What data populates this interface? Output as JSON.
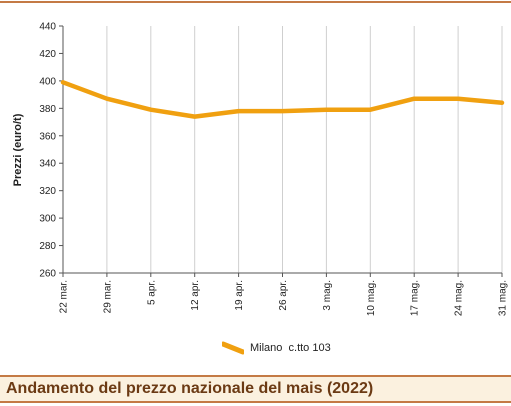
{
  "chart_data": {
    "type": "line",
    "title": "Andamento del prezzo nazionale del mais (2022)",
    "ylabel": "Prezzi (euro/t)",
    "xlabel": "",
    "categories": [
      "22 mar.",
      "29 mar.",
      "5 apr.",
      "12 apr.",
      "19 apr.",
      "26 apr.",
      "3 mag.",
      "10 mag.",
      "17 mag.",
      "24 mag.",
      "31 mag."
    ],
    "yticks": [
      260,
      280,
      300,
      320,
      340,
      360,
      380,
      400,
      420,
      440
    ],
    "ylim": [
      260,
      440
    ],
    "grid": "vertical",
    "legend_position": "bottom",
    "series": [
      {
        "name": "Milano  c.tto 103",
        "color": "#f0a010",
        "values": [
          399,
          387,
          379,
          374,
          378,
          378,
          379,
          379,
          387,
          387,
          384
        ]
      }
    ]
  }
}
